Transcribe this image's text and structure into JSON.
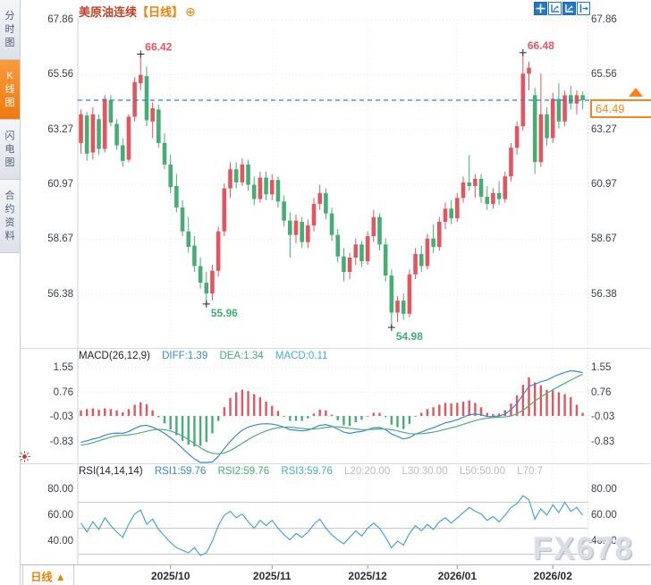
{
  "window": {
    "watermark": "FX678"
  },
  "sidebar": {
    "tabs": [
      {
        "label": "分时图",
        "active": false
      },
      {
        "label": "K线图",
        "active": true
      },
      {
        "label": "闪电图",
        "active": false
      },
      {
        "label": "合约资料",
        "active": false
      }
    ]
  },
  "header": {
    "symbol": "美原油连续",
    "period": "【日线】",
    "add_icon": "⊕"
  },
  "macd_header": {
    "name": "MACD(26,12,9)",
    "diff_label": "DIFF:1.39",
    "dea_label": "DEA:1.34",
    "macd_label": "MACD:0.11"
  },
  "rsi_header": {
    "name": "RSI(14,14,14)",
    "rsi1": "RSI1:59.76",
    "rsi2": "RSI2:59.76",
    "rsi3": "RSI3:59.76",
    "l20": "L20:20.00",
    "l30": "L30:30.00",
    "l50": "L50:50.00",
    "l70": "L70:7"
  },
  "bottom_bar": {
    "period_tab": "日线 ▲"
  },
  "current_price": {
    "value": "64.49"
  },
  "colors": {
    "up": "#e2565f",
    "down": "#46ae74",
    "diff_line": "#3a87d4",
    "dea_line": "#4caf79",
    "rsi_line": "#4aa3dc",
    "accent_orange": "#f5861f",
    "price_line": "#2f7ed8",
    "high_label": "#e8565f",
    "low_label": "#3eae73",
    "grid": "#e2e6ec",
    "level_line": "#c3c8cf"
  },
  "chart_data": {
    "type": "candlestick+indicators",
    "title": "美原油连续 日线",
    "x_months": [
      {
        "label": "2025/10",
        "idx": 15
      },
      {
        "label": "2025/11",
        "idx": 32
      },
      {
        "label": "2025/12",
        "idx": 48
      },
      {
        "label": "2026/01",
        "idx": 63
      },
      {
        "label": "2026/02",
        "idx": 79
      }
    ],
    "panels": [
      {
        "type": "candlestick",
        "y_tick_labels": [
          "67.86",
          "65.56",
          "63.27",
          "60.97",
          "58.67",
          "56.38"
        ],
        "last_price": 64.49,
        "markers": [
          {
            "idx": 10,
            "price": 66.42,
            "label": "66.42",
            "kind": "high"
          },
          {
            "idx": 21,
            "price": 55.96,
            "label": "55.96",
            "kind": "low"
          },
          {
            "idx": 52,
            "price": 54.98,
            "label": "54.98",
            "kind": "low"
          },
          {
            "idx": 74,
            "price": 66.48,
            "label": "66.48",
            "kind": "high"
          }
        ],
        "ohlc": [
          [
            62.7,
            64.1,
            62.25,
            63.9
          ],
          [
            63.85,
            64.0,
            61.95,
            62.25
          ],
          [
            62.3,
            64.2,
            62.0,
            63.9
          ],
          [
            63.7,
            63.9,
            62.2,
            62.45
          ],
          [
            62.45,
            64.7,
            62.3,
            64.55
          ],
          [
            64.5,
            64.7,
            63.4,
            63.55
          ],
          [
            63.5,
            63.7,
            62.4,
            62.6
          ],
          [
            62.6,
            62.9,
            61.7,
            61.95
          ],
          [
            62.0,
            63.9,
            61.9,
            63.8
          ],
          [
            63.8,
            65.45,
            63.6,
            65.25
          ],
          [
            65.2,
            66.42,
            64.9,
            65.55
          ],
          [
            65.5,
            65.9,
            63.4,
            63.65
          ],
          [
            63.6,
            64.4,
            62.9,
            64.15
          ],
          [
            64.1,
            64.3,
            62.5,
            62.7
          ],
          [
            62.7,
            63.1,
            61.6,
            61.8
          ],
          [
            61.8,
            62.2,
            60.6,
            60.85
          ],
          [
            60.9,
            61.4,
            59.8,
            60.0
          ],
          [
            60.0,
            60.3,
            58.8,
            59.0
          ],
          [
            59.0,
            59.6,
            58.1,
            58.35
          ],
          [
            58.4,
            58.8,
            57.3,
            57.55
          ],
          [
            57.55,
            57.9,
            56.6,
            56.85
          ],
          [
            56.85,
            57.3,
            55.96,
            56.4
          ],
          [
            56.4,
            57.6,
            56.1,
            57.35
          ],
          [
            57.35,
            59.2,
            57.1,
            59.0
          ],
          [
            59.0,
            61.0,
            58.8,
            60.8
          ],
          [
            60.8,
            61.9,
            60.4,
            61.6
          ],
          [
            61.6,
            61.9,
            60.8,
            61.05
          ],
          [
            61.05,
            62.05,
            60.9,
            61.8
          ],
          [
            61.8,
            62.0,
            60.7,
            60.95
          ],
          [
            60.95,
            61.3,
            60.1,
            60.35
          ],
          [
            60.35,
            61.5,
            60.2,
            61.25
          ],
          [
            61.25,
            61.5,
            60.3,
            60.55
          ],
          [
            60.55,
            61.4,
            60.3,
            61.15
          ],
          [
            61.15,
            61.3,
            60.0,
            60.25
          ],
          [
            60.25,
            60.5,
            59.2,
            59.45
          ],
          [
            59.45,
            59.8,
            57.9,
            58.85
          ],
          [
            58.85,
            59.7,
            58.5,
            59.45
          ],
          [
            59.4,
            59.6,
            58.3,
            58.55
          ],
          [
            58.55,
            59.5,
            58.3,
            59.25
          ],
          [
            59.25,
            60.4,
            59.0,
            60.15
          ],
          [
            60.15,
            60.95,
            59.9,
            60.6
          ],
          [
            60.6,
            60.8,
            59.5,
            59.75
          ],
          [
            59.75,
            60.0,
            58.6,
            58.85
          ],
          [
            58.85,
            59.1,
            57.7,
            57.95
          ],
          [
            57.95,
            58.3,
            56.9,
            57.3
          ],
          [
            57.3,
            58.1,
            57.0,
            57.9
          ],
          [
            57.9,
            58.7,
            57.6,
            58.45
          ],
          [
            58.45,
            58.6,
            57.5,
            57.75
          ],
          [
            57.75,
            59.0,
            57.6,
            58.8
          ],
          [
            58.8,
            59.9,
            58.55,
            59.6
          ],
          [
            59.6,
            59.75,
            58.2,
            58.45
          ],
          [
            58.45,
            58.7,
            56.9,
            57.15
          ],
          [
            57.15,
            57.4,
            54.98,
            55.6
          ],
          [
            55.6,
            56.3,
            55.2,
            56.1
          ],
          [
            56.1,
            56.4,
            55.3,
            55.55
          ],
          [
            55.55,
            57.4,
            55.4,
            57.2
          ],
          [
            57.2,
            58.3,
            57.0,
            58.05
          ],
          [
            58.05,
            58.4,
            57.3,
            57.55
          ],
          [
            57.55,
            58.9,
            57.4,
            58.7
          ],
          [
            58.7,
            59.3,
            58.1,
            58.35
          ],
          [
            58.35,
            59.6,
            58.2,
            59.4
          ],
          [
            59.4,
            60.2,
            59.1,
            59.95
          ],
          [
            59.95,
            60.3,
            59.3,
            59.55
          ],
          [
            59.55,
            60.6,
            59.4,
            60.4
          ],
          [
            60.4,
            61.3,
            60.2,
            61.05
          ],
          [
            61.05,
            62.2,
            60.7,
            60.9
          ],
          [
            60.9,
            61.4,
            60.4,
            61.2
          ],
          [
            61.2,
            61.4,
            60.2,
            60.45
          ],
          [
            60.45,
            60.9,
            59.9,
            60.15
          ],
          [
            60.15,
            60.8,
            59.95,
            60.6
          ],
          [
            60.6,
            61.1,
            60.1,
            60.35
          ],
          [
            60.35,
            61.5,
            60.2,
            61.3
          ],
          [
            61.3,
            62.7,
            61.1,
            62.5
          ],
          [
            62.5,
            63.6,
            62.2,
            63.4
          ],
          [
            63.4,
            66.48,
            63.2,
            65.6
          ],
          [
            65.6,
            66.1,
            64.9,
            65.85
          ],
          [
            64.7,
            65.0,
            61.4,
            61.9
          ],
          [
            61.9,
            65.6,
            61.7,
            63.9
          ],
          [
            63.9,
            64.2,
            62.6,
            62.9
          ],
          [
            62.9,
            64.8,
            62.7,
            64.55
          ],
          [
            64.55,
            65.2,
            63.3,
            63.6
          ],
          [
            63.6,
            64.9,
            63.4,
            64.7
          ],
          [
            64.7,
            65.1,
            64.1,
            64.35
          ],
          [
            64.35,
            64.9,
            63.9,
            64.7
          ],
          [
            64.7,
            64.85,
            64.1,
            64.49
          ]
        ]
      },
      {
        "type": "macd",
        "params": [
          26,
          12,
          9
        ],
        "y_tick_labels": [
          "1.55",
          "0.76",
          "-0.03",
          "-0.83"
        ],
        "current": {
          "diff": 1.39,
          "dea": 1.34,
          "macd": 0.11
        },
        "diff": [
          -0.85,
          -0.8,
          -0.74,
          -0.7,
          -0.62,
          -0.57,
          -0.55,
          -0.56,
          -0.5,
          -0.4,
          -0.32,
          -0.3,
          -0.36,
          -0.45,
          -0.56,
          -0.7,
          -0.86,
          -1.04,
          -1.22,
          -1.38,
          -1.5,
          -1.55,
          -1.48,
          -1.3,
          -1.05,
          -0.82,
          -0.62,
          -0.46,
          -0.36,
          -0.3,
          -0.26,
          -0.25,
          -0.26,
          -0.3,
          -0.36,
          -0.44,
          -0.46,
          -0.48,
          -0.46,
          -0.38,
          -0.3,
          -0.28,
          -0.33,
          -0.42,
          -0.52,
          -0.56,
          -0.52,
          -0.5,
          -0.44,
          -0.38,
          -0.37,
          -0.44,
          -0.58,
          -0.66,
          -0.74,
          -0.7,
          -0.58,
          -0.52,
          -0.44,
          -0.38,
          -0.3,
          -0.22,
          -0.18,
          -0.12,
          -0.04,
          0.04,
          0.06,
          0.04,
          -0.02,
          -0.02,
          0.0,
          0.06,
          0.2,
          0.4,
          0.68,
          0.95,
          1.02,
          1.1,
          1.15,
          1.25,
          1.33,
          1.4,
          1.45,
          1.43,
          1.39
        ],
        "dea": [
          -0.94,
          -0.91,
          -0.86,
          -0.8,
          -0.74,
          -0.68,
          -0.64,
          -0.62,
          -0.61,
          -0.58,
          -0.54,
          -0.49,
          -0.45,
          -0.43,
          -0.44,
          -0.48,
          -0.55,
          -0.64,
          -0.76,
          -0.89,
          -1.02,
          -1.13,
          -1.2,
          -1.22,
          -1.19,
          -1.11,
          -1.0,
          -0.88,
          -0.76,
          -0.65,
          -0.56,
          -0.48,
          -0.42,
          -0.38,
          -0.36,
          -0.36,
          -0.38,
          -0.4,
          -0.42,
          -0.42,
          -0.4,
          -0.37,
          -0.35,
          -0.35,
          -0.37,
          -0.4,
          -0.42,
          -0.44,
          -0.44,
          -0.43,
          -0.42,
          -0.42,
          -0.44,
          -0.48,
          -0.53,
          -0.57,
          -0.58,
          -0.57,
          -0.55,
          -0.52,
          -0.48,
          -0.43,
          -0.38,
          -0.33,
          -0.27,
          -0.21,
          -0.15,
          -0.1,
          -0.07,
          -0.05,
          -0.04,
          -0.03,
          0.0,
          0.07,
          0.18,
          0.33,
          0.48,
          0.61,
          0.73,
          0.84,
          0.95,
          1.05,
          1.15,
          1.25,
          1.34
        ]
      },
      {
        "type": "rsi",
        "params": [
          14,
          14,
          14
        ],
        "y_tick_labels": [
          "80.00",
          "60.00",
          "40.00"
        ],
        "levels": [
          70,
          50,
          30
        ],
        "current": {
          "rsi1": 59.76,
          "rsi2": 59.76,
          "rsi3": 59.76
        },
        "values": [
          54,
          47,
          55,
          49,
          58,
          52,
          47,
          43,
          53,
          61,
          64,
          53,
          57,
          49,
          44,
          39,
          35,
          33,
          31,
          35,
          29,
          31,
          40,
          52,
          60,
          63,
          58,
          61,
          55,
          50,
          56,
          52,
          56,
          50,
          45,
          41,
          46,
          43,
          47,
          53,
          57,
          50,
          45,
          41,
          38,
          43,
          48,
          44,
          50,
          54,
          50,
          43,
          35,
          40,
          37,
          46,
          52,
          48,
          53,
          49,
          55,
          58,
          54,
          58,
          62,
          66,
          63,
          61,
          56,
          59,
          55,
          60,
          66,
          69,
          75,
          72,
          57,
          65,
          60,
          68,
          62,
          70,
          63,
          66,
          60
        ]
      }
    ]
  }
}
